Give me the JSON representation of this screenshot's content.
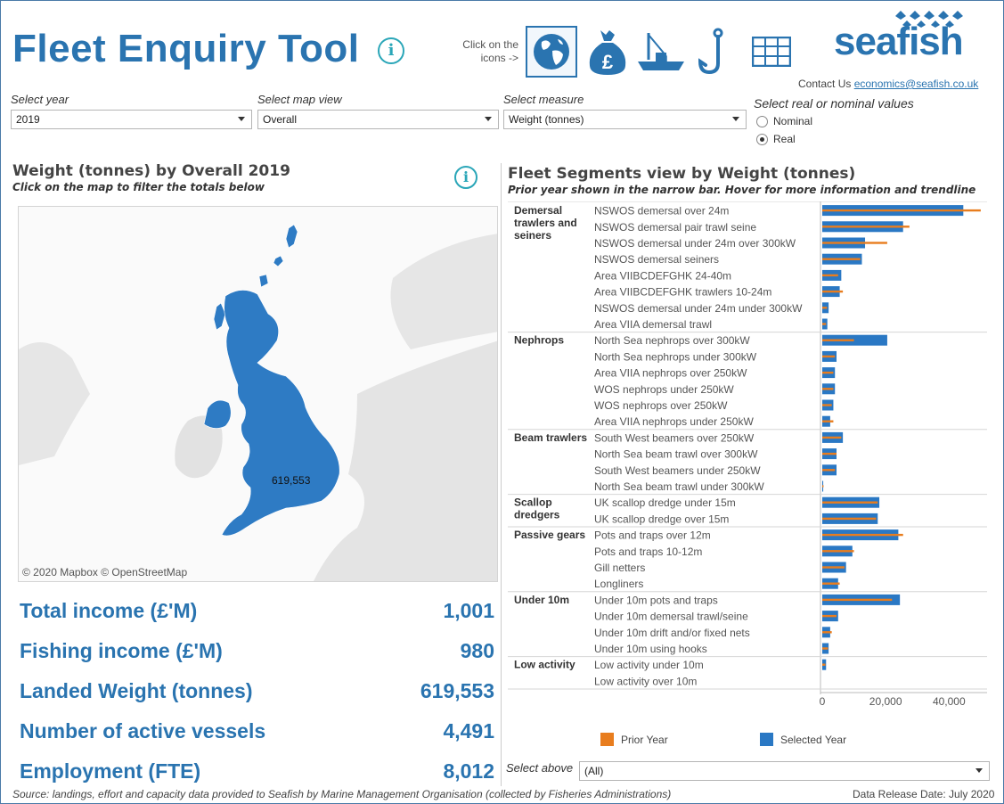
{
  "header": {
    "title": "Fleet Enquiry Tool",
    "click_hint": "Click on the icons ->",
    "nav_icons": [
      "globe-icon",
      "money-bag-icon",
      "fishing-boat-icon",
      "hook-icon",
      "table-icon"
    ],
    "logo": "seafish",
    "contact_prefix": "Contact Us ",
    "contact_email": "economics@seafish.co.uk"
  },
  "controls": {
    "year_label": "Select year",
    "year_value": "2019",
    "map_label": "Select map view",
    "map_value": "Overall",
    "measure_label": "Select measure",
    "measure_value": "Weight (tonnes)",
    "realnom_label": "Select real or nominal values",
    "options": [
      "Nominal",
      "Real"
    ],
    "selected_option": "Real"
  },
  "map_panel": {
    "title": "Weight (tonnes) by Overall 2019",
    "subtitle": "Click on the map to filter the totals below",
    "map_value": "619,553",
    "credit": "© 2020 Mapbox © OpenStreetMap"
  },
  "kpis": [
    {
      "label": "Total income (£'M)",
      "value": "1,001"
    },
    {
      "label": "Fishing income (£'M)",
      "value": "980"
    },
    {
      "label": "Landed Weight (tonnes)",
      "value": "619,553"
    },
    {
      "label": "Number of active vessels",
      "value": "4,491"
    },
    {
      "label": "Employment (FTE)",
      "value": "8,012"
    }
  ],
  "fleet_panel": {
    "title": "Fleet Segments view by Weight (tonnes)",
    "subtitle": "Prior year shown in the narrow bar. Hover for more information and trendline",
    "select_above_label": "Select above",
    "select_above_value": "(All)"
  },
  "chart_data": {
    "type": "bar",
    "orientation": "horizontal",
    "xlim": [
      0,
      52000
    ],
    "xticks": [
      0,
      20000,
      40000
    ],
    "xtick_labels": [
      "0",
      "20,000",
      "40,000"
    ],
    "grid": false,
    "legend_position": "bottom",
    "series_names": [
      "Prior Year",
      "Selected Year"
    ],
    "colors": {
      "prior": "#e87d1e",
      "selected": "#2a78c4"
    },
    "groups": [
      {
        "name": "Demersal trawlers and seiners",
        "segments": [
          {
            "label": "NSWOS demersal over 24m",
            "selected": 44500,
            "prior": 50000
          },
          {
            "label": "NSWOS demersal pair trawl seine",
            "selected": 25500,
            "prior": 27500
          },
          {
            "label": "NSWOS demersal under 24m over 300kW",
            "selected": 13500,
            "prior": 20500
          },
          {
            "label": "NSWOS demersal seiners",
            "selected": 12500,
            "prior": 12000
          },
          {
            "label": "Area VIIBCDEFGHK 24-40m",
            "selected": 6000,
            "prior": 5000
          },
          {
            "label": "Area VIIBCDEFGHK trawlers 10-24m",
            "selected": 5500,
            "prior": 6500
          },
          {
            "label": "NSWOS demersal under 24m under 300kW",
            "selected": 2000,
            "prior": 1500
          },
          {
            "label": "Area VIIA demersal trawl",
            "selected": 1600,
            "prior": 1200
          }
        ]
      },
      {
        "name": "Nephrops",
        "segments": [
          {
            "label": "North Sea nephrops over 300kW",
            "selected": 20500,
            "prior": 10000
          },
          {
            "label": "North Sea nephrops under 300kW",
            "selected": 4500,
            "prior": 4000
          },
          {
            "label": "Area VIIA nephrops over 250kW",
            "selected": 4000,
            "prior": 3500
          },
          {
            "label": "WOS nephrops under 250kW",
            "selected": 4000,
            "prior": 3500
          },
          {
            "label": "WOS nephrops over 250kW",
            "selected": 3500,
            "prior": 3000
          },
          {
            "label": "Area VIIA nephrops under 250kW",
            "selected": 2500,
            "prior": 3500
          }
        ]
      },
      {
        "name": "Beam trawlers",
        "segments": [
          {
            "label": "South West beamers over 250kW",
            "selected": 6500,
            "prior": 6000
          },
          {
            "label": "North Sea beam trawl over 300kW",
            "selected": 4500,
            "prior": 4500
          },
          {
            "label": "South West beamers under 250kW",
            "selected": 4500,
            "prior": 4000
          },
          {
            "label": "North Sea beam trawl under 300kW",
            "selected": 300,
            "prior": 400
          }
        ]
      },
      {
        "name": "Scallop dredgers",
        "segments": [
          {
            "label": "UK scallop dredge under 15m",
            "selected": 18000,
            "prior": 17500
          },
          {
            "label": "UK scallop dredge over 15m",
            "selected": 17500,
            "prior": 17000
          }
        ]
      },
      {
        "name": "Passive gears",
        "segments": [
          {
            "label": "Pots and traps over 12m",
            "selected": 24000,
            "prior": 25500
          },
          {
            "label": "Pots and traps 10-12m",
            "selected": 9500,
            "prior": 10000
          },
          {
            "label": "Gill netters",
            "selected": 7500,
            "prior": 7000
          },
          {
            "label": "Longliners",
            "selected": 5000,
            "prior": 5500
          }
        ]
      },
      {
        "name": "Under 10m",
        "segments": [
          {
            "label": "Under 10m pots and traps",
            "selected": 24500,
            "prior": 22000
          },
          {
            "label": "Under 10m demersal trawl/seine",
            "selected": 5000,
            "prior": 4500
          },
          {
            "label": "Under 10m drift and/or fixed nets",
            "selected": 2500,
            "prior": 3000
          },
          {
            "label": "Under 10m using hooks",
            "selected": 2000,
            "prior": 1800
          }
        ]
      },
      {
        "name": "Low activity",
        "segments": [
          {
            "label": "Low activity under 10m",
            "selected": 1200,
            "prior": 1000
          },
          {
            "label": "Low activity over 10m",
            "selected": 0,
            "prior": 0
          }
        ]
      }
    ]
  },
  "footer": {
    "source": "Source: landings, effort and capacity data provided to Seafish by Marine Management Organisation (collected by Fisheries Administrations)",
    "release": "Data Release Date: July 2020"
  }
}
